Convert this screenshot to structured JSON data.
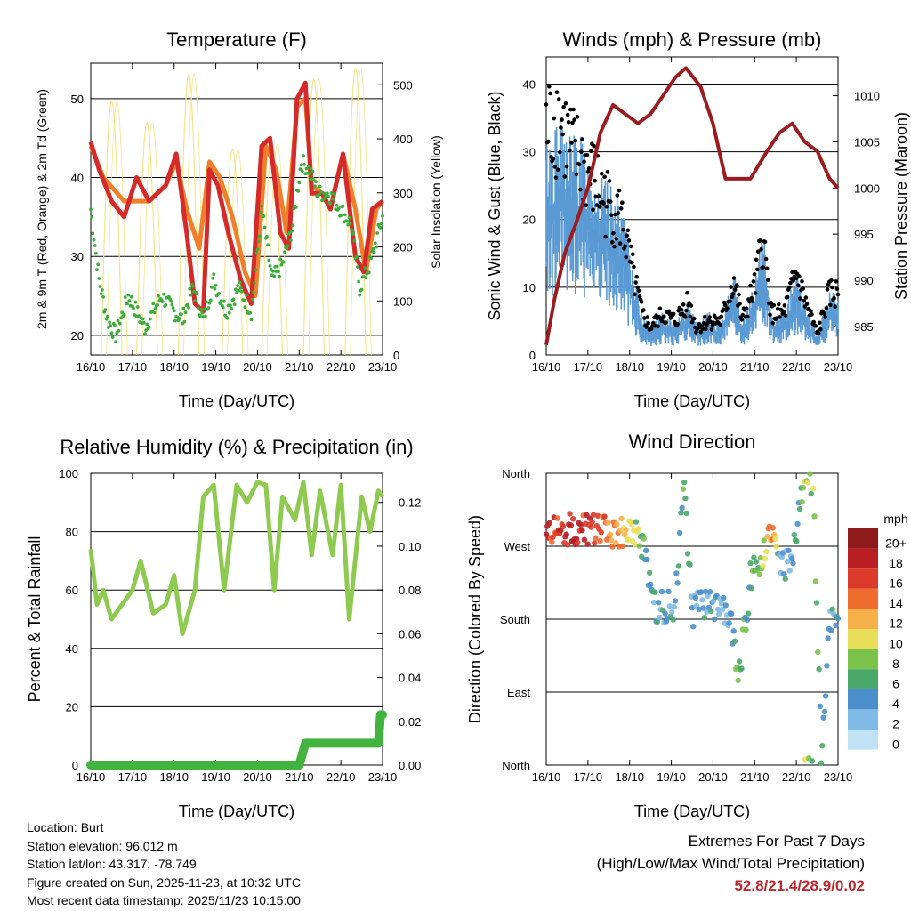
{
  "chart_data": [
    {
      "type": "line",
      "title": "Temperature (F)",
      "xlabel": "Time (Day/UTC)",
      "ylabel": "2m & 9m T (Red, Orange) & 2m Td (Green)",
      "y2label": "Solar Insolation (Yellow)",
      "categories": [
        "16/10",
        "17/10",
        "18/10",
        "19/10",
        "20/10",
        "21/10",
        "22/10",
        "23/10"
      ],
      "ylim": [
        17.5,
        54.5
      ],
      "yticks": [
        20,
        30,
        40,
        50
      ],
      "y2lim": [
        0,
        540
      ],
      "y2ticks": [
        0,
        100,
        200,
        300,
        400,
        500
      ],
      "series": [
        {
          "name": "2m T",
          "color": "#d42a2a",
          "x": [
            0,
            0.2,
            0.5,
            0.8,
            1.1,
            1.4,
            1.8,
            2.05,
            2.3,
            2.5,
            2.7,
            2.85,
            3.05,
            3.3,
            3.6,
            3.85,
            4.1,
            4.3,
            4.55,
            4.75,
            4.95,
            5.15,
            5.3,
            5.55,
            5.75,
            6.05,
            6.35,
            6.55,
            6.75,
            7.0
          ],
          "values": [
            44.5,
            41,
            37,
            35,
            40,
            37,
            39,
            43,
            33,
            24,
            23,
            41,
            39,
            33,
            27,
            24,
            44,
            45,
            33,
            31,
            50,
            52,
            38,
            38,
            36,
            43,
            30,
            28,
            36,
            37
          ]
        },
        {
          "name": "9m T",
          "color": "#f07f2a",
          "x": [
            0,
            0.3,
            0.8,
            1.4,
            1.8,
            2.05,
            2.3,
            2.6,
            2.85,
            3.1,
            3.4,
            3.7,
            3.95,
            4.2,
            4.45,
            4.7,
            4.95,
            5.15,
            5.3,
            5.55,
            5.75,
            6.05,
            6.35,
            6.6,
            6.85,
            7.0
          ],
          "values": [
            44,
            40,
            37,
            37,
            39,
            42,
            36,
            31,
            42,
            40,
            35,
            28,
            25,
            44,
            41,
            33,
            49,
            50,
            39,
            38,
            36,
            43,
            36,
            28,
            36,
            37
          ]
        },
        {
          "name": "2m Td",
          "color": "#3aae3a",
          "x": [
            0,
            0.2,
            0.4,
            0.6,
            0.9,
            1.3,
            1.7,
            2.0,
            2.2,
            2.45,
            2.7,
            2.95,
            3.25,
            3.55,
            3.85,
            4.1,
            4.35,
            4.6,
            4.85,
            5.05,
            5.25,
            5.45,
            5.7,
            6.0,
            6.25,
            6.45,
            6.7,
            7.0
          ],
          "values": [
            36,
            27,
            22,
            20,
            25,
            21,
            25,
            23,
            22,
            26,
            22,
            27,
            23,
            26,
            23,
            36,
            27,
            29,
            34,
            42,
            41,
            38,
            38,
            36,
            34,
            26,
            29,
            35
          ]
        },
        {
          "name": "Solar Insolation",
          "color": "#f8e38a",
          "axis": "y2",
          "peaks": [
            0.5,
            1.35,
            2.35,
            3.4,
            4.35,
            5.35,
            6.35
          ],
          "peak_values": [
            470,
            430,
            520,
            380,
            390,
            510,
            530
          ]
        }
      ]
    },
    {
      "type": "scatter",
      "title": "Winds (mph) & Pressure (mb)",
      "xlabel": "Time (Day/UTC)",
      "ylabel": "Sonic Wind & Gust (Blue, Black)",
      "y2label": "Station Pressure (Maroon)",
      "categories": [
        "16/10",
        "17/10",
        "18/10",
        "19/10",
        "20/10",
        "21/10",
        "22/10",
        "23/10"
      ],
      "ylim": [
        0,
        44
      ],
      "yticks": [
        0,
        10,
        20,
        30,
        40
      ],
      "y2lim": [
        981.9,
        1014.2
      ],
      "y2ticks": [
        985,
        990,
        995,
        1000,
        1005,
        1010
      ],
      "series": [
        {
          "name": "Wind",
          "color": "#5a9ad4",
          "x": [
            0,
            0.3,
            0.6,
            0.9,
            1.2,
            1.5,
            1.8,
            2.0,
            2.3,
            2.5,
            2.8,
            3.1,
            3.4,
            3.6,
            3.9,
            4.2,
            4.5,
            4.7,
            5.0,
            5.2,
            5.4,
            5.7,
            6.0,
            6.2,
            6.5,
            6.8,
            7.0
          ],
          "values": [
            20,
            22,
            21,
            20,
            17,
            16,
            14,
            10,
            4,
            3,
            4,
            3,
            5,
            3,
            4,
            3,
            8,
            3,
            7,
            12,
            4,
            4,
            8,
            5,
            2,
            6,
            6
          ]
        },
        {
          "name": "Gust",
          "color": "#000000",
          "x": [
            0,
            0.3,
            0.6,
            0.9,
            1.2,
            1.5,
            1.8,
            2.0,
            2.3,
            2.5,
            2.8,
            3.1,
            3.4,
            3.6,
            3.9,
            4.2,
            4.5,
            4.7,
            5.0,
            5.2,
            5.4,
            5.7,
            6.0,
            6.2,
            6.5,
            6.8,
            7.0
          ],
          "values": [
            33,
            35,
            30,
            28,
            25,
            22,
            20,
            14,
            6,
            4,
            6,
            5,
            8,
            4,
            5,
            5,
            11,
            5,
            10,
            17,
            6,
            6,
            12,
            8,
            3,
            9,
            9
          ]
        },
        {
          "name": "Station Pressure",
          "color": "#9b1c20",
          "axis": "y2",
          "x": [
            0,
            0.2,
            0.45,
            0.7,
            1.0,
            1.3,
            1.6,
            1.9,
            2.2,
            2.5,
            2.8,
            3.1,
            3.35,
            3.7,
            4.0,
            4.3,
            4.6,
            4.9,
            5.3,
            5.6,
            5.9,
            6.2,
            6.5,
            6.8,
            7.0
          ],
          "values": [
            983,
            988,
            993,
            996,
            1000,
            1006,
            1009,
            1008,
            1007,
            1008,
            1010,
            1012,
            1013,
            1011,
            1007,
            1001,
            1001,
            1001,
            1004,
            1006,
            1007,
            1005,
            1004,
            1001,
            1000
          ]
        }
      ]
    },
    {
      "type": "line",
      "title": "Relative Humidity (%) & Precipitation (in)",
      "xlabel": "Time (Day/UTC)",
      "ylabel": "Percent & Total Rainfall",
      "categories": [
        "16/10",
        "17/10",
        "18/10",
        "19/10",
        "20/10",
        "21/10",
        "22/10",
        "23/10"
      ],
      "ylim": [
        0,
        100
      ],
      "yticks": [
        0,
        20,
        40,
        60,
        80,
        100
      ],
      "y2lim": [
        0,
        0.1333
      ],
      "y2ticks": [
        "0.00",
        "0.02",
        "0.04",
        "0.06",
        "0.08",
        "0.10",
        "0.12"
      ],
      "series": [
        {
          "name": "Relative Humidity",
          "color": "#8fca50",
          "x": [
            0,
            0.15,
            0.3,
            0.5,
            0.75,
            1.0,
            1.2,
            1.5,
            1.8,
            2.0,
            2.2,
            2.5,
            2.7,
            2.95,
            3.2,
            3.5,
            3.75,
            4.0,
            4.2,
            4.4,
            4.6,
            4.9,
            5.1,
            5.3,
            5.5,
            5.8,
            6.0,
            6.2,
            6.5,
            6.7,
            6.9,
            7.0
          ],
          "values": [
            74,
            55,
            60,
            50,
            55,
            60,
            70,
            52,
            55,
            65,
            45,
            60,
            92,
            96,
            60,
            96,
            90,
            97,
            96,
            60,
            92,
            84,
            97,
            72,
            94,
            72,
            96,
            50,
            92,
            80,
            94,
            92
          ]
        },
        {
          "name": "Total Precipitation",
          "color": "#42b33f",
          "axis": "y2",
          "x": [
            0,
            5.0,
            5.15,
            6.9,
            6.95,
            7.0
          ],
          "values": [
            0,
            0,
            0.01,
            0.01,
            0.023,
            0.023
          ]
        }
      ]
    },
    {
      "type": "scatter",
      "title": "Wind Direction",
      "xlabel": "Time (Day/UTC)",
      "ylabel": "Direction (Colored By Speed)",
      "categories": [
        "16/10",
        "17/10",
        "18/10",
        "19/10",
        "20/10",
        "21/10",
        "22/10",
        "23/10"
      ],
      "yticks": [
        "North",
        "East",
        "South",
        "West",
        "North"
      ],
      "colorbar_label": "mph",
      "colorbar_ticks": [
        "0",
        "2",
        "4",
        "6",
        "8",
        "10",
        "12",
        "14",
        "16",
        "18",
        "20+"
      ],
      "colorbar_colors": [
        "#bfe3f5",
        "#7fbbe6",
        "#4a8fcc",
        "#4aa86a",
        "#7cc24a",
        "#e9df5a",
        "#f6b04a",
        "#ee6c2e",
        "#dc3a2a",
        "#b81e22",
        "#8e1a1c"
      ],
      "x": [
        0.2,
        0.6,
        1.0,
        1.4,
        1.8,
        2.1,
        2.3,
        2.6,
        2.9,
        3.1,
        3.3,
        3.5,
        3.8,
        4.1,
        4.4,
        4.6,
        4.9,
        5.2,
        5.4,
        5.6,
        5.9,
        6.2,
        6.4,
        6.6,
        6.8,
        7.0
      ],
      "values": [
        290,
        292,
        290,
        288,
        285,
        295,
        270,
        195,
        195,
        200,
        350,
        190,
        200,
        195,
        190,
        100,
        230,
        260,
        300,
        240,
        250,
        355,
        350,
        10,
        180,
        185
      ],
      "speeds": [
        16,
        18,
        16,
        14,
        12,
        10,
        6,
        4,
        4,
        3,
        7,
        3,
        4,
        4,
        3,
        7,
        6,
        8,
        14,
        4,
        3,
        9,
        8,
        5,
        3,
        5
      ]
    }
  ],
  "footer": {
    "location": "Location: Burt",
    "elevation": "Station elevation: 96.012 m",
    "latlon": "Station lat/lon: 43.317; -78.749",
    "created": "Figure created on Sun, 2025-11-23, at 10:32 UTC",
    "recent": "Most recent data timestamp: 2025/11/23 10:15:00"
  },
  "extremes": {
    "title": "Extremes For Past 7 Days",
    "subtitle": "(High/Low/Max Wind/Total Precipitation)",
    "values": "52.8/21.4/28.9/0.02"
  }
}
